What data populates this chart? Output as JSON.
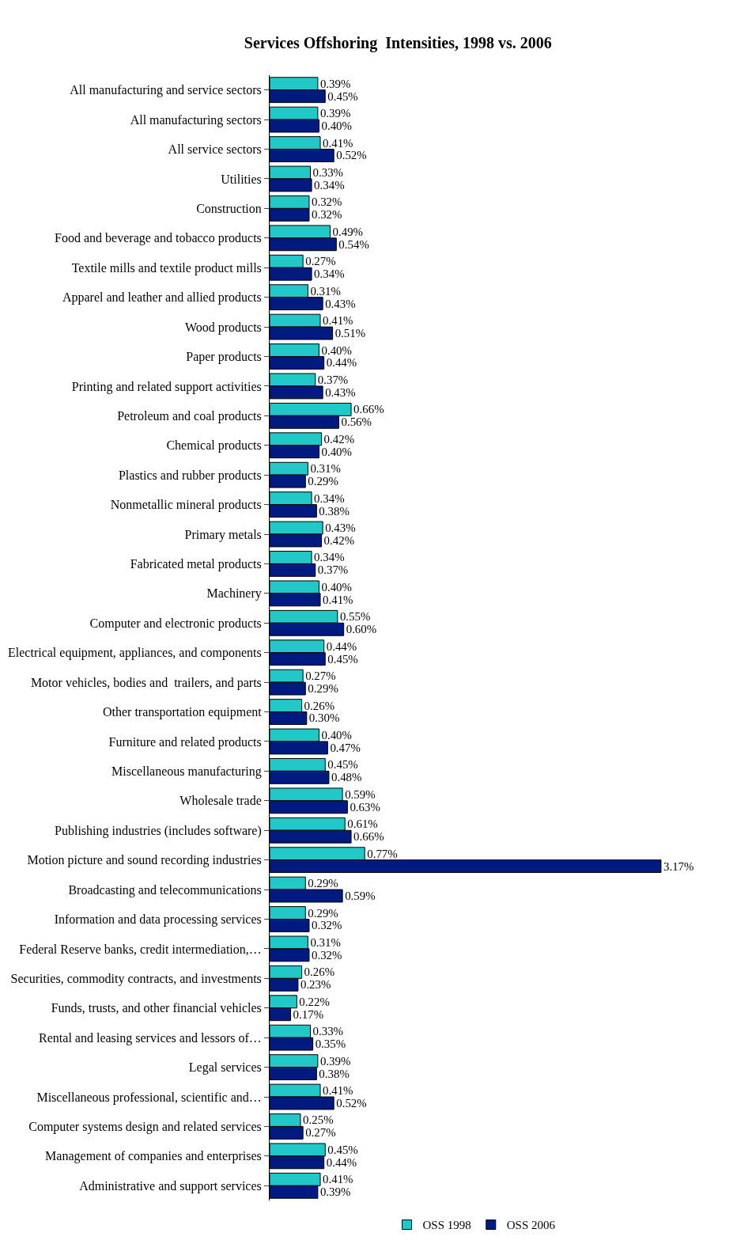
{
  "chart_data": {
    "type": "bar",
    "orientation": "horizontal",
    "title": "Services Offshoring  Intensities, 1998 vs. 2006",
    "categories": [
      "All manufacturing and service sectors",
      "All manufacturing sectors",
      "All service sectors",
      "Utilities",
      "Construction",
      "Food and beverage and tobacco products",
      "Textile mills and textile product mills",
      "Apparel and leather and allied products",
      "Wood products",
      "Paper products",
      "Printing and related support activities",
      "Petroleum and coal products",
      "Chemical products",
      "Plastics and rubber products",
      "Nonmetallic mineral products",
      "Primary metals",
      "Fabricated metal products",
      "Machinery",
      "Computer and electronic products",
      "Electrical equipment, appliances, and components",
      "Motor vehicles, bodies and  trailers, and parts",
      "Other transportation equipment",
      "Furniture and related products",
      "Miscellaneous manufacturing",
      "Wholesale trade",
      "Publishing industries (includes software)",
      "Motion picture and sound recording industries",
      "Broadcasting and telecommunications",
      "Information and data processing services",
      "Federal Reserve banks, credit intermediation,…",
      "Securities, commodity contracts, and investments",
      "Funds, trusts, and other financial vehicles",
      "Rental and leasing services and lessors of…",
      "Legal services",
      "Miscellaneous professional, scientific and…",
      "Computer systems design and related services",
      "Management of companies and enterprises",
      "Administrative and support services"
    ],
    "series": [
      {
        "name": "OSS 1998",
        "color": "#22c8c8",
        "values": [
          0.39,
          0.39,
          0.41,
          0.33,
          0.32,
          0.49,
          0.27,
          0.31,
          0.41,
          0.4,
          0.37,
          0.66,
          0.42,
          0.31,
          0.34,
          0.43,
          0.34,
          0.4,
          0.55,
          0.44,
          0.27,
          0.26,
          0.4,
          0.45,
          0.59,
          0.61,
          0.77,
          0.29,
          0.29,
          0.31,
          0.26,
          0.22,
          0.33,
          0.39,
          0.41,
          0.25,
          0.45,
          0.41
        ],
        "value_labels": [
          "0.39%",
          "0.39%",
          "0.41%",
          "0.33%",
          "0.32%",
          "0.49%",
          "0.27%",
          "0.31%",
          "0.41%",
          "0.40%",
          "0.37%",
          "0.66%",
          "0.42%",
          "0.31%",
          "0.34%",
          "0.43%",
          "0.34%",
          "0.40%",
          "0.55%",
          "0.44%",
          "0.27%",
          "0.26%",
          "0.40%",
          "0.45%",
          "0.59%",
          "0.61%",
          "0.77%",
          "0.29%",
          "0.29%",
          "0.31%",
          "0.26%",
          "0.22%",
          "0.33%",
          "0.39%",
          "0.41%",
          "0.25%",
          "0.45%",
          "0.41%"
        ]
      },
      {
        "name": "OSS 2006",
        "color": "#001a80",
        "values": [
          0.45,
          0.4,
          0.52,
          0.34,
          0.32,
          0.54,
          0.34,
          0.43,
          0.51,
          0.44,
          0.43,
          0.56,
          0.4,
          0.29,
          0.38,
          0.42,
          0.37,
          0.41,
          0.6,
          0.45,
          0.29,
          0.3,
          0.47,
          0.48,
          0.63,
          0.66,
          3.17,
          0.59,
          0.32,
          0.32,
          0.23,
          0.17,
          0.35,
          0.38,
          0.52,
          0.27,
          0.44,
          0.39
        ],
        "value_labels": [
          "0.45%",
          "0.40%",
          "0.52%",
          "0.34%",
          "0.32%",
          "0.54%",
          "0.34%",
          "0.43%",
          "0.51%",
          "0.44%",
          "0.43%",
          "0.56%",
          "0.40%",
          "0.29%",
          "0.38%",
          "0.42%",
          "0.37%",
          "0.41%",
          "0.60%",
          "0.45%",
          "0.29%",
          "0.30%",
          "0.47%",
          "0.48%",
          "0.63%",
          "0.66%",
          "3.17%",
          "0.59%",
          "0.32%",
          "0.32%",
          "0.23%",
          "0.17%",
          "0.35%",
          "0.38%",
          "0.52%",
          "0.27%",
          "0.44%",
          "0.39%"
        ]
      }
    ],
    "legend": "bottom"
  }
}
